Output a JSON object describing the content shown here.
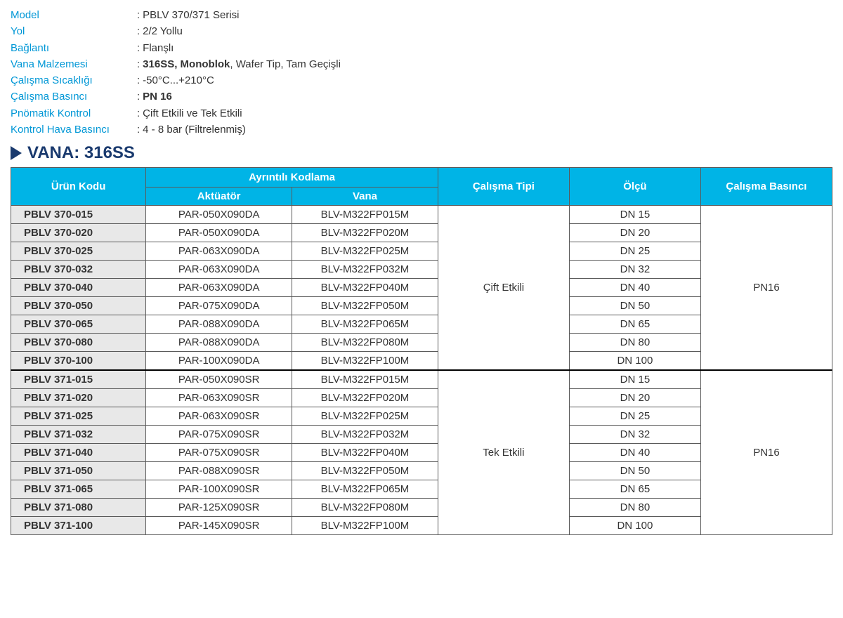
{
  "specs": [
    {
      "label": "Model",
      "value": "PBLV 370/371 Serisi"
    },
    {
      "label": "Yol",
      "value": "2/2 Yollu"
    },
    {
      "label": "Bağlantı",
      "value": "Flanşlı"
    },
    {
      "label": "Vana Malzemesi",
      "value": "<b>316SS, Monoblok</b>, Wafer Tip, Tam Geçişli",
      "html": true
    },
    {
      "label": "Çalışma Sıcaklığı",
      "value": "-50°C...+210°C"
    },
    {
      "label": "Çalışma Basıncı",
      "value": "<b>PN 16</b>",
      "html": true
    },
    {
      "label": "Pnömatik Kontrol",
      "value": "Çift Etkili ve Tek Etkili"
    },
    {
      "label": "Kontrol Hava Basıncı",
      "value": "4 - 8 bar (Filtrelenmiş)"
    }
  ],
  "section_title": "VANA: 316SS",
  "headers": {
    "urun": "Ürün Kodu",
    "ayrintili": "Ayrıntılı Kodlama",
    "aktuator": "Aktüatör",
    "vana": "Vana",
    "tip": "Çalışma Tipi",
    "olcu": "Ölçü",
    "basinc": "Çalışma Basıncı"
  },
  "groups": [
    {
      "tip": "Çift Etkili",
      "basinc": "PN16",
      "rows": [
        {
          "code": "PBLV 370-015",
          "akt": "PAR-050X090DA",
          "vana": "BLV-M322FP015M",
          "olcu": "DN 15"
        },
        {
          "code": "PBLV 370-020",
          "akt": "PAR-050X090DA",
          "vana": "BLV-M322FP020M",
          "olcu": "DN 20"
        },
        {
          "code": "PBLV 370-025",
          "akt": "PAR-063X090DA",
          "vana": "BLV-M322FP025M",
          "olcu": "DN 25"
        },
        {
          "code": "PBLV 370-032",
          "akt": "PAR-063X090DA",
          "vana": "BLV-M322FP032M",
          "olcu": "DN 32"
        },
        {
          "code": "PBLV 370-040",
          "akt": "PAR-063X090DA",
          "vana": "BLV-M322FP040M",
          "olcu": "DN 40"
        },
        {
          "code": "PBLV 370-050",
          "akt": "PAR-075X090DA",
          "vana": "BLV-M322FP050M",
          "olcu": "DN 50"
        },
        {
          "code": "PBLV 370-065",
          "akt": "PAR-088X090DA",
          "vana": "BLV-M322FP065M",
          "olcu": "DN 65"
        },
        {
          "code": "PBLV 370-080",
          "akt": "PAR-088X090DA",
          "vana": "BLV-M322FP080M",
          "olcu": "DN 80"
        },
        {
          "code": "PBLV 370-100",
          "akt": "PAR-100X090DA",
          "vana": "BLV-M322FP100M",
          "olcu": "DN 100"
        }
      ]
    },
    {
      "tip": "Tek Etkili",
      "basinc": "PN16",
      "rows": [
        {
          "code": "PBLV 371-015",
          "akt": "PAR-050X090SR",
          "vana": "BLV-M322FP015M",
          "olcu": "DN 15"
        },
        {
          "code": "PBLV 371-020",
          "akt": "PAR-063X090SR",
          "vana": "BLV-M322FP020M",
          "olcu": "DN 20"
        },
        {
          "code": "PBLV 371-025",
          "akt": "PAR-063X090SR",
          "vana": "BLV-M322FP025M",
          "olcu": "DN 25"
        },
        {
          "code": "PBLV 371-032",
          "akt": "PAR-075X090SR",
          "vana": "BLV-M322FP032M",
          "olcu": "DN 32"
        },
        {
          "code": "PBLV 371-040",
          "akt": "PAR-075X090SR",
          "vana": "BLV-M322FP040M",
          "olcu": "DN 40"
        },
        {
          "code": "PBLV 371-050",
          "akt": "PAR-088X090SR",
          "vana": "BLV-M322FP050M",
          "olcu": "DN 50"
        },
        {
          "code": "PBLV 371-065",
          "akt": "PAR-100X090SR",
          "vana": "BLV-M322FP065M",
          "olcu": "DN 65"
        },
        {
          "code": "PBLV 371-080",
          "akt": "PAR-125X090SR",
          "vana": "BLV-M322FP080M",
          "olcu": "DN 80"
        },
        {
          "code": "PBLV 371-100",
          "akt": "PAR-145X090SR",
          "vana": "BLV-M322FP100M",
          "olcu": "DN 100"
        }
      ]
    }
  ]
}
